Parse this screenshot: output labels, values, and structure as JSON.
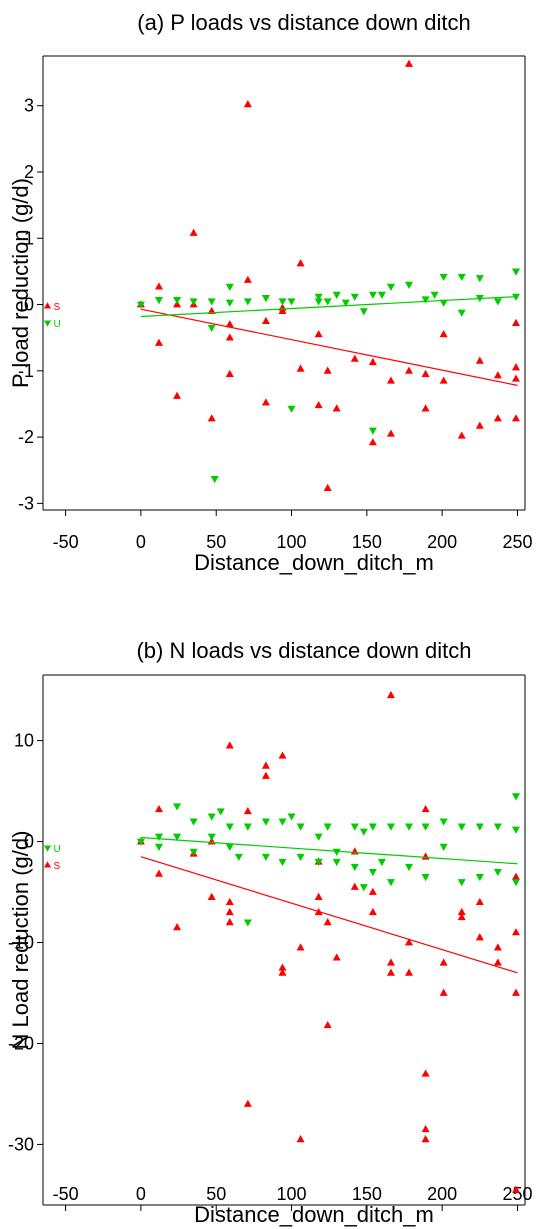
{
  "colors": {
    "S": "#ff0000",
    "U": "#00cc00"
  },
  "chart_data": [
    {
      "type": "scatter",
      "title": "(a) P loads vs distance down ditch",
      "xlabel": "Distance_down_ditch_m",
      "ylabel": "P load reduction (g/d)",
      "xlim": [
        -65,
        255
      ],
      "ylim": [
        -3.1,
        3.75
      ],
      "xticks": [
        -50,
        0,
        50,
        100,
        150,
        200,
        250
      ],
      "yticks": [
        -3,
        -2,
        -1,
        0,
        1,
        2,
        3
      ],
      "legend": [
        {
          "name": "S",
          "marker": "triangle-up"
        },
        {
          "name": "U",
          "marker": "triangle-down"
        }
      ],
      "series": [
        {
          "name": "S",
          "marker": "triangle-up",
          "points": [
            [
              0,
              0
            ],
            [
              12,
              0.27
            ],
            [
              12,
              -0.58
            ],
            [
              24,
              -1.38
            ],
            [
              24,
              0
            ],
            [
              35,
              0
            ],
            [
              35,
              1.08
            ],
            [
              47,
              -1.72
            ],
            [
              47,
              -0.1
            ],
            [
              59,
              -0.3
            ],
            [
              59,
              -0.5
            ],
            [
              59,
              -1.05
            ],
            [
              71,
              0.37
            ],
            [
              71,
              3.02
            ],
            [
              83,
              -1.48
            ],
            [
              83,
              -0.25
            ],
            [
              94,
              -0.1
            ],
            [
              94,
              -0.05
            ],
            [
              106,
              -0.97
            ],
            [
              106,
              0.62
            ],
            [
              118,
              -1.52
            ],
            [
              118,
              -0.45
            ],
            [
              124,
              -2.77
            ],
            [
              124,
              -1.0
            ],
            [
              130,
              -1.57
            ],
            [
              142,
              -0.82
            ],
            [
              154,
              -2.08
            ],
            [
              154,
              -0.87
            ],
            [
              166,
              -1.95
            ],
            [
              166,
              -1.15
            ],
            [
              178,
              3.63
            ],
            [
              178,
              -1.0
            ],
            [
              189,
              -1.57
            ],
            [
              189,
              -1.05
            ],
            [
              201,
              -1.15
            ],
            [
              201,
              -0.45
            ],
            [
              213,
              -1.98
            ],
            [
              225,
              -1.83
            ],
            [
              225,
              -0.85
            ],
            [
              237,
              -1.72
            ],
            [
              237,
              -1.07
            ],
            [
              249,
              -1.72
            ],
            [
              249,
              -1.12
            ],
            [
              249,
              -0.95
            ],
            [
              249,
              -0.28
            ]
          ],
          "trend": [
            [
              0,
              -0.07
            ],
            [
              250,
              -1.22
            ]
          ]
        },
        {
          "name": "U",
          "marker": "triangle-down",
          "points": [
            [
              0,
              0
            ],
            [
              12,
              0.07
            ],
            [
              24,
              0.07
            ],
            [
              35,
              0.05
            ],
            [
              47,
              0.05
            ],
            [
              47,
              -0.35
            ],
            [
              49,
              -2.63
            ],
            [
              59,
              0.27
            ],
            [
              59,
              0.03
            ],
            [
              71,
              0.05
            ],
            [
              83,
              0.1
            ],
            [
              94,
              0.05
            ],
            [
              100,
              0.05
            ],
            [
              100,
              -1.57
            ],
            [
              118,
              0.05
            ],
            [
              118,
              0.12
            ],
            [
              124,
              0.05
            ],
            [
              130,
              0.15
            ],
            [
              136,
              0.03
            ],
            [
              142,
              0.12
            ],
            [
              148,
              -0.1
            ],
            [
              154,
              0.15
            ],
            [
              154,
              -1.9
            ],
            [
              160,
              0.15
            ],
            [
              166,
              0.27
            ],
            [
              178,
              0.3
            ],
            [
              189,
              0.08
            ],
            [
              195,
              0.15
            ],
            [
              201,
              0.42
            ],
            [
              201,
              0.03
            ],
            [
              213,
              0.42
            ],
            [
              213,
              -0.12
            ],
            [
              225,
              0.4
            ],
            [
              225,
              0.1
            ],
            [
              237,
              0.05
            ],
            [
              249,
              0.5
            ],
            [
              249,
              0.12
            ]
          ],
          "trend": [
            [
              0,
              -0.18
            ],
            [
              250,
              0.12
            ]
          ]
        }
      ]
    },
    {
      "type": "scatter",
      "title": "(b) N loads vs distance down ditch",
      "xlabel": "Distance_down_ditch_m",
      "ylabel": "N Load reduction (g/d)",
      "xlim": [
        -65,
        255
      ],
      "ylim": [
        -36,
        16.5
      ],
      "xticks": [
        -50,
        0,
        50,
        100,
        150,
        200,
        250
      ],
      "yticks": [
        -30,
        -20,
        -10,
        0,
        10
      ],
      "legend": [
        {
          "name": "U",
          "marker": "triangle-down"
        },
        {
          "name": "S",
          "marker": "triangle-up"
        }
      ],
      "series": [
        {
          "name": "S",
          "marker": "triangle-up",
          "points": [
            [
              0,
              0
            ],
            [
              12,
              3.2
            ],
            [
              12,
              -3.2
            ],
            [
              24,
              -8.5
            ],
            [
              35,
              -1.2
            ],
            [
              47,
              -5.5
            ],
            [
              47,
              0
            ],
            [
              59,
              9.5
            ],
            [
              59,
              -6.0
            ],
            [
              59,
              -7.0
            ],
            [
              59,
              -8.0
            ],
            [
              71,
              -26.0
            ],
            [
              71,
              3.0
            ],
            [
              83,
              7.5
            ],
            [
              83,
              6.5
            ],
            [
              94,
              8.5
            ],
            [
              94,
              -12.5
            ],
            [
              94,
              -13.0
            ],
            [
              106,
              -29.5
            ],
            [
              106,
              -10.5
            ],
            [
              118,
              -2.0
            ],
            [
              118,
              -5.5
            ],
            [
              118,
              -7.0
            ],
            [
              124,
              -18.2
            ],
            [
              124,
              -8.0
            ],
            [
              130,
              -11.5
            ],
            [
              142,
              -1.0
            ],
            [
              142,
              -4.5
            ],
            [
              154,
              -5.0
            ],
            [
              154,
              -7.0
            ],
            [
              166,
              14.5
            ],
            [
              166,
              -12.0
            ],
            [
              166,
              -13.0
            ],
            [
              178,
              -10.0
            ],
            [
              178,
              -13.0
            ],
            [
              189,
              -23.0
            ],
            [
              189,
              -28.5
            ],
            [
              189,
              -29.5
            ],
            [
              189,
              3.2
            ],
            [
              189,
              -1.5
            ],
            [
              201,
              -12.0
            ],
            [
              201,
              -15.0
            ],
            [
              213,
              -7.0
            ],
            [
              213,
              -7.5
            ],
            [
              225,
              -6.0
            ],
            [
              225,
              -9.5
            ],
            [
              237,
              -10.5
            ],
            [
              237,
              -12.0
            ],
            [
              249,
              -34.5
            ],
            [
              249,
              -15.0
            ],
            [
              249,
              -9.0
            ],
            [
              249,
              -3.5
            ]
          ],
          "trend": [
            [
              0,
              -1.5
            ],
            [
              250,
              -13.0
            ]
          ]
        },
        {
          "name": "U",
          "marker": "triangle-down",
          "points": [
            [
              0,
              0
            ],
            [
              12,
              0.5
            ],
            [
              12,
              -0.5
            ],
            [
              24,
              3.5
            ],
            [
              24,
              0.5
            ],
            [
              35,
              2.0
            ],
            [
              35,
              -1.0
            ],
            [
              47,
              2.5
            ],
            [
              47,
              0.5
            ],
            [
              53,
              3.0
            ],
            [
              59,
              1.5
            ],
            [
              59,
              -0.5
            ],
            [
              65,
              -1.5
            ],
            [
              71,
              -8.0
            ],
            [
              71,
              1.5
            ],
            [
              83,
              2.0
            ],
            [
              83,
              -1.5
            ],
            [
              94,
              2.0
            ],
            [
              94,
              -2.0
            ],
            [
              100,
              2.5
            ],
            [
              106,
              1.5
            ],
            [
              106,
              -1.5
            ],
            [
              118,
              0.5
            ],
            [
              118,
              -2.0
            ],
            [
              124,
              1.5
            ],
            [
              130,
              -1.0
            ],
            [
              130,
              -2.0
            ],
            [
              142,
              1.5
            ],
            [
              142,
              -2.5
            ],
            [
              148,
              1.0
            ],
            [
              148,
              -4.5
            ],
            [
              154,
              1.5
            ],
            [
              154,
              -3.0
            ],
            [
              160,
              -2.0
            ],
            [
              166,
              1.5
            ],
            [
              166,
              -4.0
            ],
            [
              178,
              1.5
            ],
            [
              178,
              -2.5
            ],
            [
              189,
              1.5
            ],
            [
              189,
              -3.5
            ],
            [
              201,
              2.0
            ],
            [
              201,
              -0.5
            ],
            [
              213,
              1.5
            ],
            [
              213,
              -4.0
            ],
            [
              225,
              1.5
            ],
            [
              225,
              -3.5
            ],
            [
              237,
              1.5
            ],
            [
              237,
              -3.0
            ],
            [
              249,
              4.5
            ],
            [
              249,
              1.2
            ],
            [
              249,
              -4.0
            ]
          ],
          "trend": [
            [
              0,
              0.4
            ],
            [
              250,
              -2.2
            ]
          ]
        }
      ]
    }
  ]
}
